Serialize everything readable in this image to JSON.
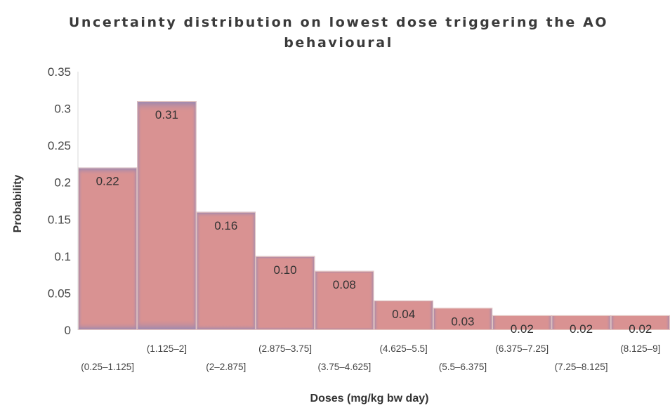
{
  "chart_data": {
    "type": "bar",
    "title_lines": [
      "Uncertainty distribution on lowest dose triggering the AO",
      "behavioural"
    ],
    "xlabel": "Doses (mg/kg bw day)",
    "ylabel": "Probability",
    "ylim": [
      0,
      0.35
    ],
    "yticks": [
      "0",
      "0.05",
      "0.1",
      "0.15",
      "0.2",
      "0.25",
      "0.3",
      "0.35"
    ],
    "categories": [
      "(0.25–1.125]",
      "(1.125–2]",
      "(2–2.875]",
      "(2.875–3.75]",
      "(3.75–4.625]",
      "(4.625–5.5]",
      "(5.5–6.375]",
      "(6.375–7.25]",
      "(7.25–8.125]",
      "(8.125–9]"
    ],
    "values": [
      0.22,
      0.31,
      0.16,
      0.1,
      0.08,
      0.04,
      0.03,
      0.02,
      0.02,
      0.02
    ],
    "data_labels": [
      "0.22",
      "0.31",
      "0.16",
      "0.10",
      "0.08",
      "0.04",
      "0.03",
      "0.02",
      "0.02",
      "0.02"
    ],
    "grid": false,
    "legend": "none",
    "bar_color": "#d99292",
    "bar_edge_color": "#8c86b8"
  }
}
